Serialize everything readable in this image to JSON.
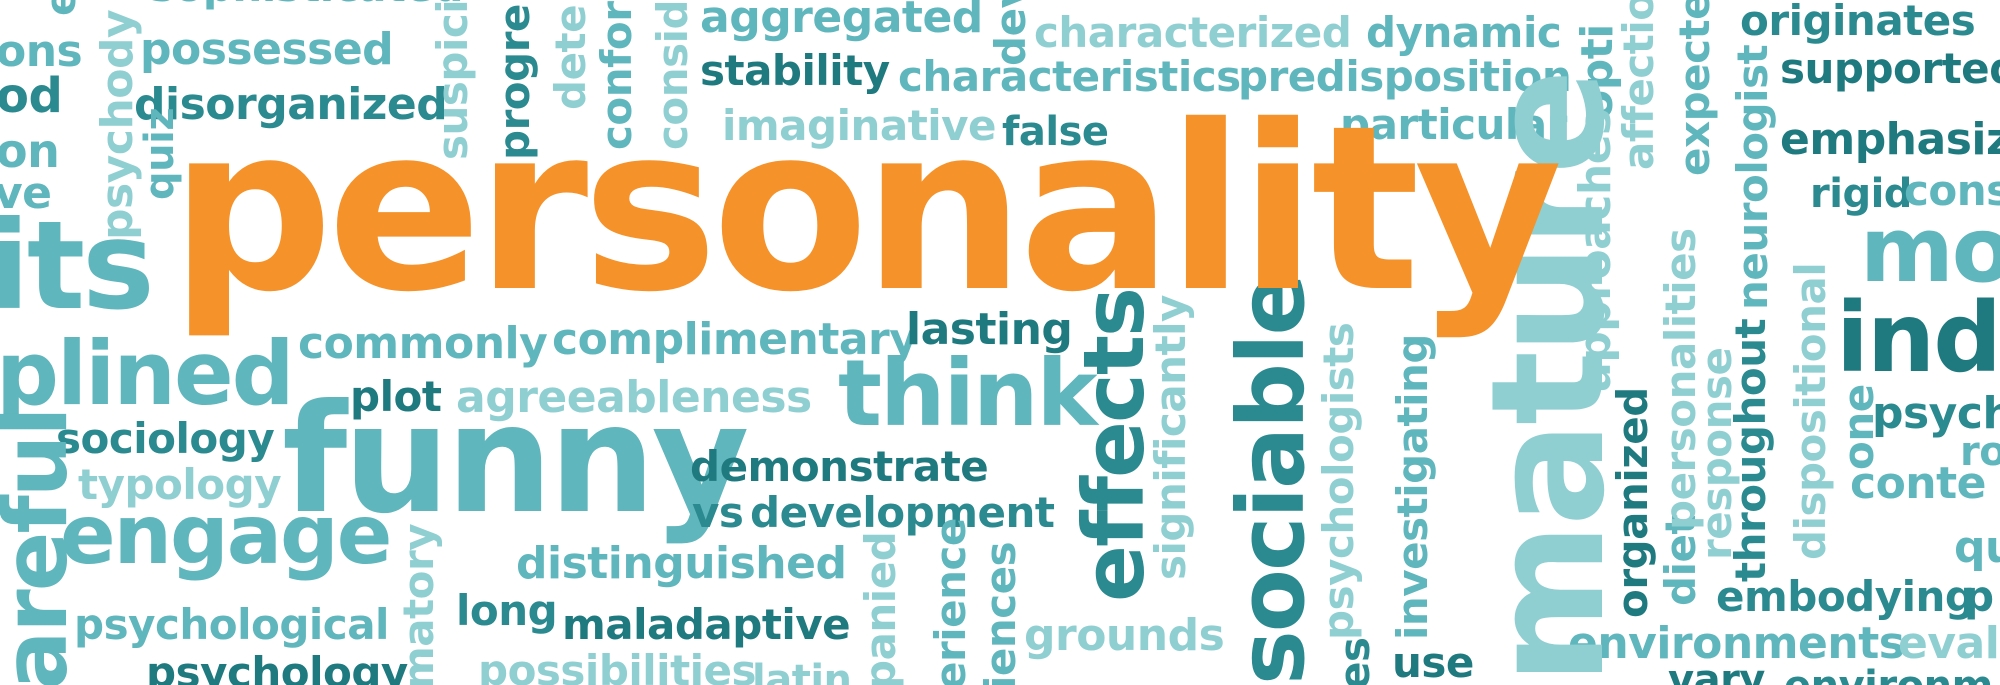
{
  "words": {
    "personality": "personality",
    "its": "its",
    "plined": "plined",
    "funny": "funny",
    "engage": "engage",
    "think": "think",
    "possessed": "possessed",
    "disorganized": "disorganized",
    "aggregated": "aggregated",
    "stability": "stability",
    "characterized": "characterized",
    "dynamic": "dynamic",
    "characteristics": "characteristics",
    "predisposition": "predisposition",
    "imaginative": "imaginative",
    "false": "false",
    "particular": "particular",
    "commonly": "commonly",
    "complimentary": "complimentary",
    "lasting": "lasting",
    "plot": "plot",
    "agreeableness": "agreeableness",
    "sociology": "sociology",
    "typology": "typology",
    "demonstrate": "demonstrate",
    "vs": "vs",
    "development": "development",
    "distinguished": "distinguished",
    "long": "long",
    "maladaptive": "maladaptive",
    "psychological": "psychological",
    "psychology": "psychology",
    "possibilities": "possibilities",
    "latin": "latin",
    "grounds": "grounds",
    "use": "use",
    "environments": "environments",
    "evalu": "evalu",
    "vary": "vary",
    "environm2": "environm",
    "embodying": "embodying",
    "p": "p",
    "qua": "qua",
    "conte": "conte",
    "ro": "ro",
    "psych": "psych",
    "inde": "inde",
    "mo": "mo",
    "rigid": "rigid",
    "const": "const",
    "emphasiz": "emphasiz",
    "originates": "originates",
    "supported": "supported",
    "ons": "ons",
    "od": "od",
    "on": "on",
    "ve": "ve",
    "sophisticated": "sophisticated",
    "mature": "mature",
    "sociable": "sociable",
    "effects": "effects",
    "significantly": "significantly",
    "psychologists": "psychologists",
    "investigating": "investigating",
    "psychodynamic": "psychody",
    "quiz": "quiz",
    "suspicious": "suspici",
    "progress": "progre",
    "determined": "dete",
    "conformity": "confor",
    "considered": "conside",
    "developed": "dev",
    "optimistic": "opti",
    "affection": "affectio",
    "expected": "expecte",
    "neurologist": "neurologist",
    "approaches": "approaches",
    "organized": "organized",
    "diet": "diet",
    "personalities": "personalities",
    "response": "response",
    "throughout": "throughout",
    "dispositional": "dispositional",
    "one": "one",
    "accompanied": "panied",
    "experience": "erience",
    "experiences": "iences",
    "inflammatory": "matory",
    "careful": "areful",
    "es": "es",
    "e": "e"
  },
  "colors": {
    "accent": "#f5922a",
    "dark": "#1f7a80",
    "teal": "#2a8a8f",
    "mid": "#5fb6bc",
    "light": "#8fcfd2",
    "background": "#ffffff"
  }
}
